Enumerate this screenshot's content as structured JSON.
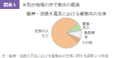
{
  "chart_data": {
    "type": "pie",
    "title": "阪神・淡路大震災における被救出の主体",
    "subtitle": "８割が地域の力で救出の図表",
    "annotations": [
      "図表１",
      "注：阪神・淡路大震災における被救出の主体に関する調査より作成"
    ],
    "categories": [
      "近所の人\nなど",
      "家族・\n友人",
      "救助隊\n等",
      "その他"
    ],
    "values": [
      77.5,
      8.5,
      9.0,
      5.0
    ],
    "colors": [
      "#F5C090",
      "#B8DCA8",
      "#F0F0F0",
      "#E8A878"
    ]
  }
}
